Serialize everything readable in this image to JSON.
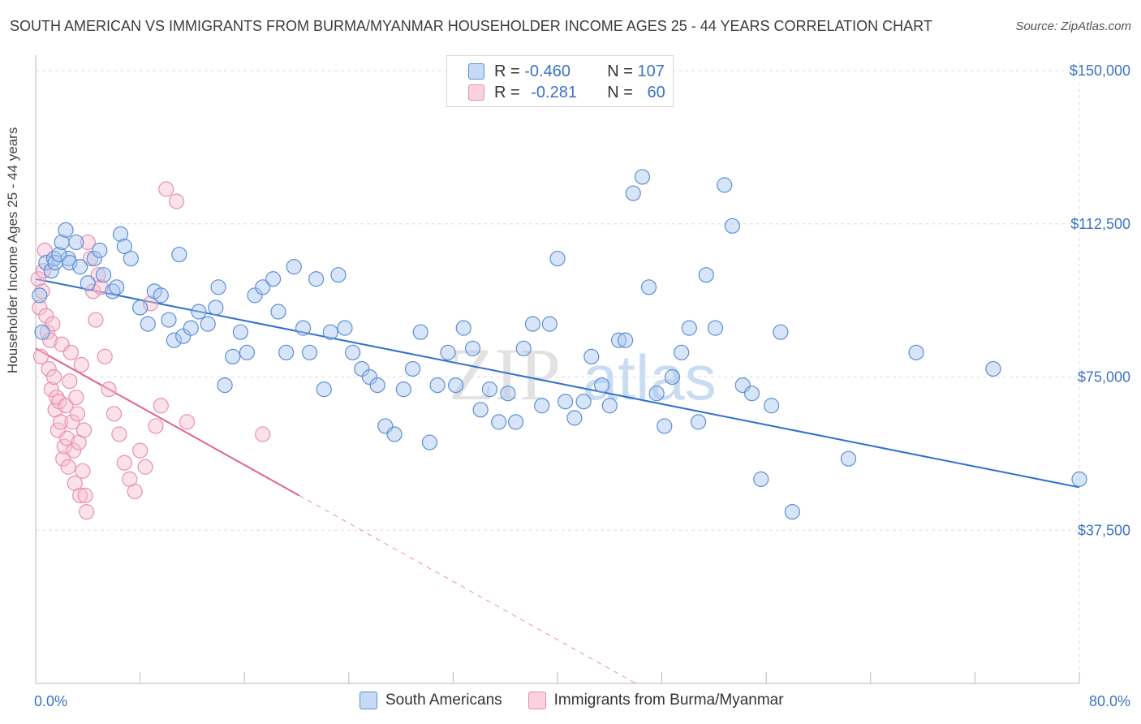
{
  "header": {
    "title": "SOUTH AMERICAN VS IMMIGRANTS FROM BURMA/MYANMAR HOUSEHOLDER INCOME AGES 25 - 44 YEARS CORRELATION CHART",
    "source": "Source: ZipAtlas.com"
  },
  "legend_top": {
    "row1": {
      "r_label": "R = ",
      "r_value": "-0.460",
      "n_label": "N = ",
      "n_value": "107"
    },
    "row2": {
      "r_label": "R = ",
      "r_value": "-0.281",
      "n_label": "N = ",
      "n_value": "60"
    }
  },
  "legend_bottom": {
    "series1": "South Americans",
    "series2": "Immigrants from Burma/Myanmar"
  },
  "colors": {
    "blue_fill": "#a9c6ef",
    "blue_stroke": "#5b8fd6",
    "blue_line": "#2f6fcc",
    "pink_fill": "#f7bfd0",
    "pink_stroke": "#e890ad",
    "pink_line": "#e0628e",
    "grid": "#dddddd",
    "axis_text": "#3b73c4"
  },
  "watermark": {
    "zip": "ZIP",
    "atlas": "atlas"
  },
  "chart_data": {
    "type": "scatter",
    "title": "SOUTH AMERICAN VS IMMIGRANTS FROM BURMA/MYANMAR HOUSEHOLDER INCOME AGES 25 - 44 YEARS CORRELATION CHART",
    "xlabel": "",
    "ylabel": "Householder Income Ages 25 - 44 years",
    "xlim": [
      0,
      80
    ],
    "ylim": [
      0,
      152000
    ],
    "x_tick_labels": [
      "0.0%",
      "80.0%"
    ],
    "y_ticks": [
      37500,
      75000,
      112500,
      150000
    ],
    "y_tick_labels": [
      "$37,500",
      "$75,000",
      "$112,500",
      "$150,000"
    ],
    "grid": true,
    "legend_position": "bottom",
    "series": [
      {
        "name": "South Americans",
        "color": "#a9c6ef",
        "R": -0.46,
        "N": 107,
        "trend": {
          "x": [
            0,
            80
          ],
          "y": [
            99000,
            48000
          ],
          "dashed_from": null
        },
        "points": [
          [
            0.3,
            95000
          ],
          [
            0.5,
            86000
          ],
          [
            0.8,
            103000
          ],
          [
            1.2,
            101000
          ],
          [
            1.4,
            104000
          ],
          [
            1.5,
            103000
          ],
          [
            2.5,
            104000
          ],
          [
            1.8,
            105000
          ],
          [
            2.0,
            108000
          ],
          [
            2.3,
            111000
          ],
          [
            2.6,
            103000
          ],
          [
            3.1,
            108000
          ],
          [
            3.4,
            102000
          ],
          [
            4.0,
            98000
          ],
          [
            4.5,
            104000
          ],
          [
            4.9,
            106000
          ],
          [
            5.2,
            100000
          ],
          [
            5.9,
            96000
          ],
          [
            6.2,
            97000
          ],
          [
            6.5,
            110000
          ],
          [
            6.8,
            107000
          ],
          [
            7.3,
            104000
          ],
          [
            8.0,
            92000
          ],
          [
            8.6,
            88000
          ],
          [
            9.1,
            96000
          ],
          [
            9.6,
            95000
          ],
          [
            10.2,
            89000
          ],
          [
            10.6,
            84000
          ],
          [
            11.0,
            105000
          ],
          [
            11.3,
            85000
          ],
          [
            11.9,
            87000
          ],
          [
            12.5,
            91000
          ],
          [
            13.2,
            88000
          ],
          [
            13.8,
            92000
          ],
          [
            14.0,
            97000
          ],
          [
            14.5,
            73000
          ],
          [
            15.1,
            80000
          ],
          [
            15.7,
            86000
          ],
          [
            16.2,
            81000
          ],
          [
            16.8,
            95000
          ],
          [
            17.4,
            97000
          ],
          [
            18.2,
            99000
          ],
          [
            18.6,
            91000
          ],
          [
            19.2,
            81000
          ],
          [
            19.8,
            102000
          ],
          [
            20.5,
            87000
          ],
          [
            21.0,
            81000
          ],
          [
            21.5,
            99000
          ],
          [
            22.1,
            72000
          ],
          [
            22.6,
            86000
          ],
          [
            23.2,
            100000
          ],
          [
            23.7,
            87000
          ],
          [
            24.3,
            81000
          ],
          [
            25.0,
            77000
          ],
          [
            25.6,
            75000
          ],
          [
            26.2,
            73000
          ],
          [
            26.8,
            63000
          ],
          [
            27.5,
            61000
          ],
          [
            28.2,
            72000
          ],
          [
            28.9,
            77000
          ],
          [
            29.5,
            86000
          ],
          [
            30.2,
            59000
          ],
          [
            30.8,
            73000
          ],
          [
            31.6,
            81000
          ],
          [
            32.2,
            73000
          ],
          [
            32.8,
            87000
          ],
          [
            33.5,
            82000
          ],
          [
            34.1,
            67000
          ],
          [
            34.8,
            72000
          ],
          [
            35.5,
            64000
          ],
          [
            36.2,
            71000
          ],
          [
            36.8,
            64000
          ],
          [
            37.4,
            82000
          ],
          [
            38.1,
            88000
          ],
          [
            38.8,
            68000
          ],
          [
            39.4,
            88000
          ],
          [
            40.0,
            104000
          ],
          [
            40.6,
            69000
          ],
          [
            41.3,
            65000
          ],
          [
            42.0,
            69000
          ],
          [
            42.6,
            80000
          ],
          [
            43.4,
            73000
          ],
          [
            44.0,
            68000
          ],
          [
            44.7,
            84000
          ],
          [
            45.2,
            84000
          ],
          [
            45.8,
            120000
          ],
          [
            46.5,
            124000
          ],
          [
            47.0,
            97000
          ],
          [
            47.6,
            71000
          ],
          [
            48.2,
            63000
          ],
          [
            48.8,
            75000
          ],
          [
            49.5,
            81000
          ],
          [
            50.1,
            87000
          ],
          [
            50.8,
            64000
          ],
          [
            51.4,
            100000
          ],
          [
            52.1,
            87000
          ],
          [
            52.8,
            122000
          ],
          [
            53.4,
            112000
          ],
          [
            54.2,
            73000
          ],
          [
            54.9,
            71000
          ],
          [
            55.6,
            50000
          ],
          [
            56.4,
            68000
          ],
          [
            57.1,
            86000
          ],
          [
            58.0,
            42000
          ],
          [
            62.3,
            55000
          ],
          [
            67.5,
            81000
          ],
          [
            73.4,
            77000
          ],
          [
            80.0,
            50000
          ]
        ]
      },
      {
        "name": "Immigrants from Burma/Myanmar",
        "color": "#f7bfd0",
        "R": -0.281,
        "N": 60,
        "trend": {
          "x": [
            0,
            20.2
          ],
          "y": [
            82000,
            46000
          ],
          "dashed_to": [
            46.0,
            0
          ]
        },
        "points": [
          [
            0.2,
            99000
          ],
          [
            0.3,
            92000
          ],
          [
            0.4,
            80000
          ],
          [
            0.5,
            96000
          ],
          [
            0.6,
            101000
          ],
          [
            0.7,
            106000
          ],
          [
            0.8,
            90000
          ],
          [
            0.9,
            86000
          ],
          [
            1.0,
            77000
          ],
          [
            1.1,
            84000
          ],
          [
            1.2,
            72000
          ],
          [
            1.3,
            88000
          ],
          [
            1.4,
            75000
          ],
          [
            1.5,
            67000
          ],
          [
            1.6,
            70000
          ],
          [
            1.7,
            62000
          ],
          [
            1.8,
            69000
          ],
          [
            1.9,
            64000
          ],
          [
            2.0,
            83000
          ],
          [
            2.1,
            55000
          ],
          [
            2.2,
            58000
          ],
          [
            2.3,
            68000
          ],
          [
            2.4,
            60000
          ],
          [
            2.5,
            53000
          ],
          [
            2.6,
            74000
          ],
          [
            2.7,
            81000
          ],
          [
            2.8,
            64000
          ],
          [
            2.9,
            57000
          ],
          [
            3.0,
            49000
          ],
          [
            3.1,
            70000
          ],
          [
            3.2,
            66000
          ],
          [
            3.3,
            59000
          ],
          [
            3.4,
            46000
          ],
          [
            3.5,
            78000
          ],
          [
            3.6,
            52000
          ],
          [
            3.7,
            62000
          ],
          [
            3.8,
            46000
          ],
          [
            3.9,
            42000
          ],
          [
            4.0,
            108000
          ],
          [
            4.2,
            104000
          ],
          [
            4.4,
            96000
          ],
          [
            4.6,
            89000
          ],
          [
            4.8,
            100000
          ],
          [
            5.0,
            97000
          ],
          [
            5.3,
            80000
          ],
          [
            5.6,
            72000
          ],
          [
            6.0,
            66000
          ],
          [
            6.4,
            61000
          ],
          [
            6.8,
            54000
          ],
          [
            7.2,
            50000
          ],
          [
            7.6,
            47000
          ],
          [
            8.0,
            57000
          ],
          [
            8.4,
            53000
          ],
          [
            8.8,
            93000
          ],
          [
            9.2,
            63000
          ],
          [
            9.6,
            68000
          ],
          [
            10.0,
            121000
          ],
          [
            10.8,
            118000
          ],
          [
            11.6,
            64000
          ],
          [
            17.4,
            61000
          ]
        ]
      }
    ]
  }
}
